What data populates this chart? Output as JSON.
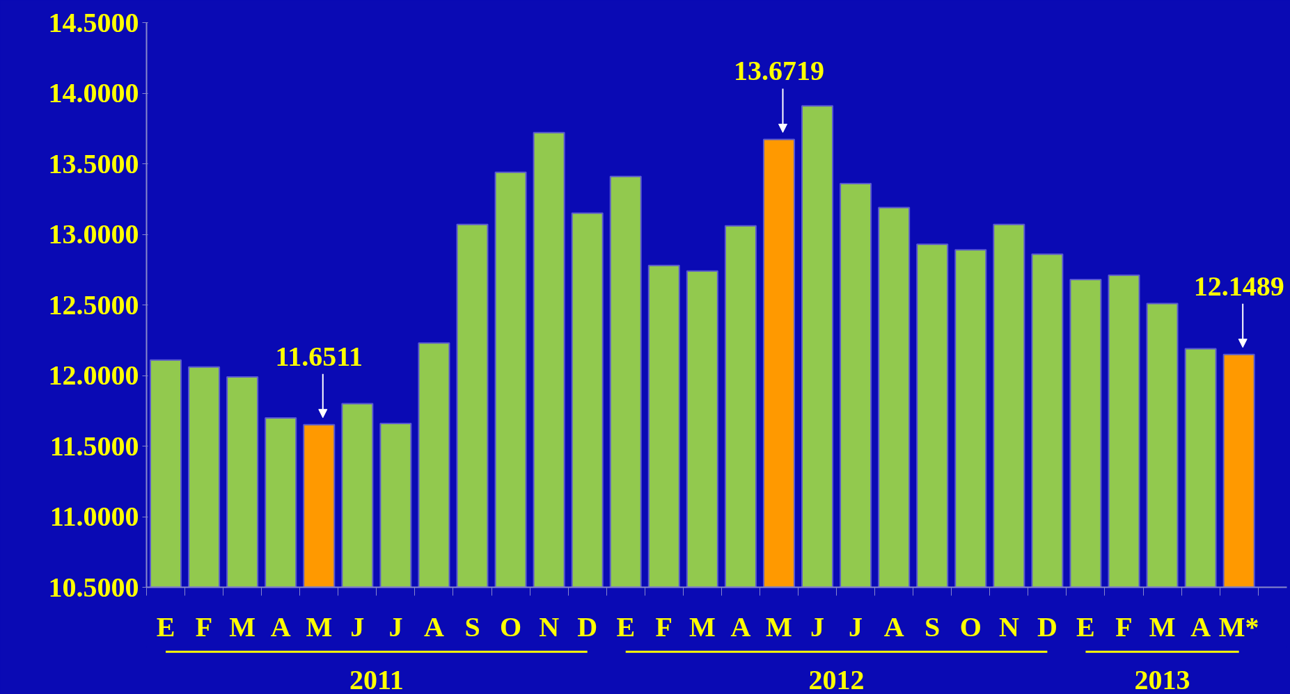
{
  "chart_data": {
    "type": "bar",
    "categories": [
      "E",
      "F",
      "M",
      "A",
      "M",
      "J",
      "J",
      "A",
      "S",
      "O",
      "N",
      "D",
      "E",
      "F",
      "M",
      "A",
      "M",
      "J",
      "J",
      "A",
      "S",
      "O",
      "N",
      "D",
      "E",
      "F",
      "M",
      "A",
      "M*"
    ],
    "values": [
      12.11,
      12.06,
      11.99,
      11.7,
      11.6511,
      11.8,
      11.66,
      12.23,
      13.07,
      13.44,
      13.72,
      13.15,
      13.41,
      12.78,
      12.74,
      13.06,
      13.6719,
      13.91,
      13.36,
      13.19,
      12.93,
      12.89,
      13.07,
      12.86,
      12.68,
      12.71,
      12.51,
      12.19,
      12.1489
    ],
    "colors": [
      "#92c94e",
      "#92c94e",
      "#92c94e",
      "#92c94e",
      "#ff9900",
      "#92c94e",
      "#92c94e",
      "#92c94e",
      "#92c94e",
      "#92c94e",
      "#92c94e",
      "#92c94e",
      "#92c94e",
      "#92c94e",
      "#92c94e",
      "#92c94e",
      "#ff9900",
      "#92c94e",
      "#92c94e",
      "#92c94e",
      "#92c94e",
      "#92c94e",
      "#92c94e",
      "#92c94e",
      "#92c94e",
      "#92c94e",
      "#92c94e",
      "#92c94e",
      "#ff9900"
    ],
    "value_labels": [
      null,
      null,
      null,
      null,
      "11.6511",
      null,
      null,
      null,
      null,
      null,
      null,
      null,
      null,
      null,
      null,
      null,
      "13.6719",
      null,
      null,
      null,
      null,
      null,
      null,
      null,
      null,
      null,
      null,
      null,
      "12.1489"
    ],
    "ylim": [
      10.5,
      14.5
    ],
    "yticks": [
      {
        "value": 10.5,
        "label": "10.5000"
      },
      {
        "value": 11,
        "label": "11.0000"
      },
      {
        "value": 11.5,
        "label": "11.5000"
      },
      {
        "value": 12,
        "label": "12.0000"
      },
      {
        "value": 12.5,
        "label": "12.5000"
      },
      {
        "value": 13,
        "label": "13.0000"
      },
      {
        "value": 13.5,
        "label": "13.5000"
      },
      {
        "value": 14,
        "label": "14.0000"
      },
      {
        "value": 14.5,
        "label": "14.5000"
      }
    ],
    "annotations": [
      "2011",
      "2012",
      "2013"
    ],
    "grid": false
  }
}
